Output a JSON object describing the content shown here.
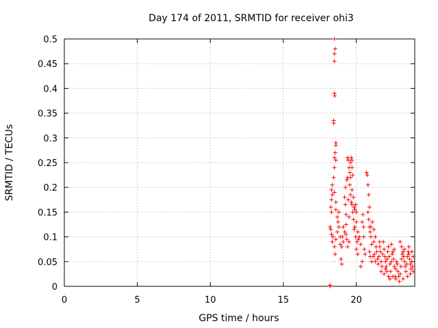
{
  "chart_data": {
    "type": "scatter",
    "title": "Day 174 of 2011, SRMTID for receiver ohi3",
    "xlabel": "GPS time / hours",
    "ylabel": "SRMTID / TECUs",
    "xlim": [
      0,
      24
    ],
    "ylim": [
      0,
      0.5
    ],
    "xticks": [
      0,
      5,
      10,
      15,
      20
    ],
    "xtick_labels": [
      "0",
      "5",
      "10",
      "15",
      "20"
    ],
    "yticks": [
      0,
      0.05,
      0.1,
      0.15,
      0.2,
      0.25,
      0.3,
      0.35,
      0.4,
      0.45,
      0.5
    ],
    "ytick_labels": [
      "0",
      "0.05",
      "0.1",
      "0.15",
      "0.2",
      "0.25",
      "0.3",
      "0.35",
      "0.4",
      "0.45",
      "0.5"
    ],
    "grid": true,
    "marker": "+",
    "series": [
      {
        "name": "SRMTID",
        "color": "#ff0000",
        "points": [
          [
            18.2,
            0.0
          ],
          [
            18.2,
            0.002
          ],
          [
            18.5,
            0.5
          ],
          [
            18.55,
            0.48
          ],
          [
            18.5,
            0.47
          ],
          [
            18.5,
            0.455
          ],
          [
            18.5,
            0.39
          ],
          [
            18.52,
            0.385
          ],
          [
            18.45,
            0.335
          ],
          [
            18.45,
            0.33
          ],
          [
            18.6,
            0.29
          ],
          [
            18.6,
            0.285
          ],
          [
            18.55,
            0.27
          ],
          [
            18.5,
            0.26
          ],
          [
            18.6,
            0.255
          ],
          [
            18.5,
            0.24
          ],
          [
            18.45,
            0.22
          ],
          [
            18.35,
            0.205
          ],
          [
            18.3,
            0.195
          ],
          [
            18.35,
            0.185
          ],
          [
            18.3,
            0.175
          ],
          [
            18.25,
            0.16
          ],
          [
            18.3,
            0.15
          ],
          [
            18.2,
            0.12
          ],
          [
            18.25,
            0.115
          ],
          [
            18.3,
            0.105
          ],
          [
            18.4,
            0.1
          ],
          [
            18.35,
            0.09
          ],
          [
            18.5,
            0.19
          ],
          [
            18.6,
            0.17
          ],
          [
            18.6,
            0.155
          ],
          [
            18.7,
            0.14
          ],
          [
            18.75,
            0.13
          ],
          [
            18.8,
            0.15
          ],
          [
            18.8,
            0.12
          ],
          [
            18.7,
            0.11
          ],
          [
            18.6,
            0.095
          ],
          [
            18.5,
            0.08
          ],
          [
            18.55,
            0.065
          ],
          [
            18.9,
            0.1
          ],
          [
            18.9,
            0.085
          ],
          [
            19.0,
            0.08
          ],
          [
            19.1,
            0.09
          ],
          [
            19.0,
            0.045
          ],
          [
            18.95,
            0.055
          ],
          [
            19.05,
            0.1
          ],
          [
            19.1,
            0.12
          ],
          [
            19.2,
            0.11
          ],
          [
            19.3,
            0.125
          ],
          [
            19.3,
            0.105
          ],
          [
            19.35,
            0.095
          ],
          [
            19.4,
            0.08
          ],
          [
            19.2,
            0.18
          ],
          [
            19.25,
            0.165
          ],
          [
            19.3,
            0.145
          ],
          [
            19.25,
            0.2
          ],
          [
            19.35,
            0.215
          ],
          [
            19.4,
            0.22
          ],
          [
            19.4,
            0.26
          ],
          [
            19.45,
            0.255
          ],
          [
            19.5,
            0.24
          ],
          [
            19.55,
            0.23
          ],
          [
            19.6,
            0.25
          ],
          [
            19.6,
            0.22
          ],
          [
            19.55,
            0.205
          ],
          [
            19.65,
            0.26
          ],
          [
            19.7,
            0.255
          ],
          [
            19.7,
            0.24
          ],
          [
            19.75,
            0.225
          ],
          [
            19.7,
            0.195
          ],
          [
            19.8,
            0.18
          ],
          [
            19.85,
            0.16
          ],
          [
            19.75,
            0.15
          ],
          [
            19.8,
            0.135
          ],
          [
            19.9,
            0.155
          ],
          [
            19.95,
            0.165
          ],
          [
            20.0,
            0.15
          ],
          [
            20.0,
            0.13
          ],
          [
            19.9,
            0.12
          ],
          [
            19.85,
            0.115
          ],
          [
            19.95,
            0.1
          ],
          [
            20.05,
            0.09
          ],
          [
            20.1,
            0.11
          ],
          [
            20.15,
            0.095
          ],
          [
            20.0,
            0.075
          ],
          [
            20.1,
            0.065
          ],
          [
            19.5,
            0.09
          ],
          [
            19.5,
            0.14
          ],
          [
            19.45,
            0.175
          ],
          [
            19.6,
            0.185
          ],
          [
            19.65,
            0.17
          ],
          [
            19.7,
            0.165
          ],
          [
            20.2,
            0.1
          ],
          [
            20.3,
            0.085
          ],
          [
            20.4,
            0.13
          ],
          [
            20.45,
            0.145
          ],
          [
            20.5,
            0.12
          ],
          [
            20.5,
            0.1
          ],
          [
            20.55,
            0.075
          ],
          [
            20.6,
            0.065
          ],
          [
            20.4,
            0.05
          ],
          [
            20.3,
            0.04
          ],
          [
            20.7,
            0.23
          ],
          [
            20.75,
            0.225
          ],
          [
            20.8,
            0.205
          ],
          [
            20.85,
            0.185
          ],
          [
            20.9,
            0.16
          ],
          [
            20.8,
            0.15
          ],
          [
            20.85,
            0.135
          ],
          [
            20.9,
            0.12
          ],
          [
            20.95,
            0.11
          ],
          [
            21.0,
            0.12
          ],
          [
            21.0,
            0.1
          ],
          [
            21.05,
            0.085
          ],
          [
            21.1,
            0.13
          ],
          [
            21.2,
            0.115
          ],
          [
            21.2,
            0.09
          ],
          [
            21.3,
            0.1
          ],
          [
            21.35,
            0.08
          ],
          [
            21.25,
            0.065
          ],
          [
            21.15,
            0.06
          ],
          [
            21.05,
            0.05
          ],
          [
            20.9,
            0.07
          ],
          [
            20.95,
            0.06
          ],
          [
            21.4,
            0.07
          ],
          [
            21.45,
            0.055
          ],
          [
            21.5,
            0.045
          ],
          [
            21.55,
            0.06
          ],
          [
            21.6,
            0.08
          ],
          [
            21.65,
            0.07
          ],
          [
            21.7,
            0.05
          ],
          [
            21.75,
            0.04
          ],
          [
            21.8,
            0.065
          ],
          [
            21.85,
            0.09
          ],
          [
            21.9,
            0.075
          ],
          [
            21.95,
            0.06
          ],
          [
            22.0,
            0.05
          ],
          [
            22.05,
            0.04
          ],
          [
            22.1,
            0.055
          ],
          [
            22.15,
            0.07
          ],
          [
            22.2,
            0.08
          ],
          [
            22.25,
            0.06
          ],
          [
            22.3,
            0.045
          ],
          [
            22.35,
            0.03
          ],
          [
            22.4,
            0.05
          ],
          [
            22.45,
            0.065
          ],
          [
            22.5,
            0.07
          ],
          [
            22.55,
            0.055
          ],
          [
            22.6,
            0.04
          ],
          [
            22.65,
            0.02
          ],
          [
            22.7,
            0.035
          ],
          [
            22.75,
            0.05
          ],
          [
            22.8,
            0.045
          ],
          [
            22.85,
            0.03
          ],
          [
            22.9,
            0.02
          ],
          [
            22.95,
            0.01
          ],
          [
            23.0,
            0.025
          ],
          [
            23.05,
            0.04
          ],
          [
            23.1,
            0.055
          ],
          [
            23.15,
            0.065
          ],
          [
            23.2,
            0.07
          ],
          [
            23.25,
            0.06
          ],
          [
            23.3,
            0.05
          ],
          [
            23.35,
            0.04
          ],
          [
            23.4,
            0.03
          ],
          [
            23.45,
            0.045
          ],
          [
            23.5,
            0.06
          ],
          [
            23.55,
            0.07
          ],
          [
            23.6,
            0.065
          ],
          [
            23.65,
            0.055
          ],
          [
            23.7,
            0.045
          ],
          [
            23.75,
            0.035
          ],
          [
            23.8,
            0.05
          ],
          [
            23.85,
            0.04
          ],
          [
            23.9,
            0.03
          ],
          [
            23.0,
            0.09
          ],
          [
            23.1,
            0.08
          ],
          [
            22.1,
            0.03
          ],
          [
            22.2,
            0.02
          ],
          [
            22.3,
            0.015
          ],
          [
            22.5,
            0.02
          ],
          [
            22.7,
            0.015
          ],
          [
            23.2,
            0.015
          ],
          [
            23.5,
            0.02
          ],
          [
            23.7,
            0.025
          ],
          [
            22.0,
            0.035
          ],
          [
            21.9,
            0.025
          ],
          [
            21.7,
            0.03
          ],
          [
            22.4,
            0.085
          ],
          [
            22.6,
            0.075
          ],
          [
            21.6,
            0.09
          ],
          [
            21.3,
            0.05
          ],
          [
            23.3,
            0.075
          ],
          [
            23.6,
            0.08
          ],
          [
            23.8,
            0.07
          ],
          [
            23.9,
            0.06
          ]
        ]
      }
    ]
  }
}
